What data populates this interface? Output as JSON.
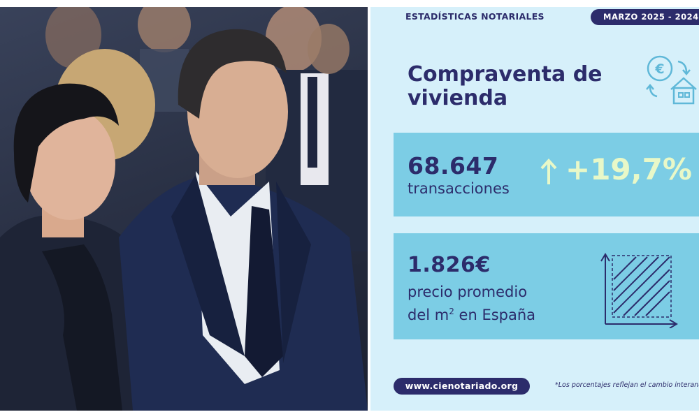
{
  "photo": {
    "description_icon": "photo-image"
  },
  "infographic": {
    "header_title": "ESTADÍSTICAS NOTARIALES",
    "date_range": "MARZO 2025 - 2024",
    "main_title": "Compraventa de vivienda",
    "transactions": {
      "value": "68.647",
      "label": "transacciones",
      "change": "+19,7%"
    },
    "price": {
      "value": "1.826€",
      "label_line1": "precio promedio",
      "label_line2_prefix": "del m",
      "label_line2_sup": "2",
      "label_line2_suffix": " en España"
    },
    "website": "www.cienotariado.org",
    "footnote": "*Los porcentajes reflejan el cambio interanual"
  },
  "colors": {
    "navy": "#2c2c6b",
    "panel_bg": "#d6f0fa",
    "card_bg": "#7ccde5",
    "highlight": "#e8f8c8"
  }
}
